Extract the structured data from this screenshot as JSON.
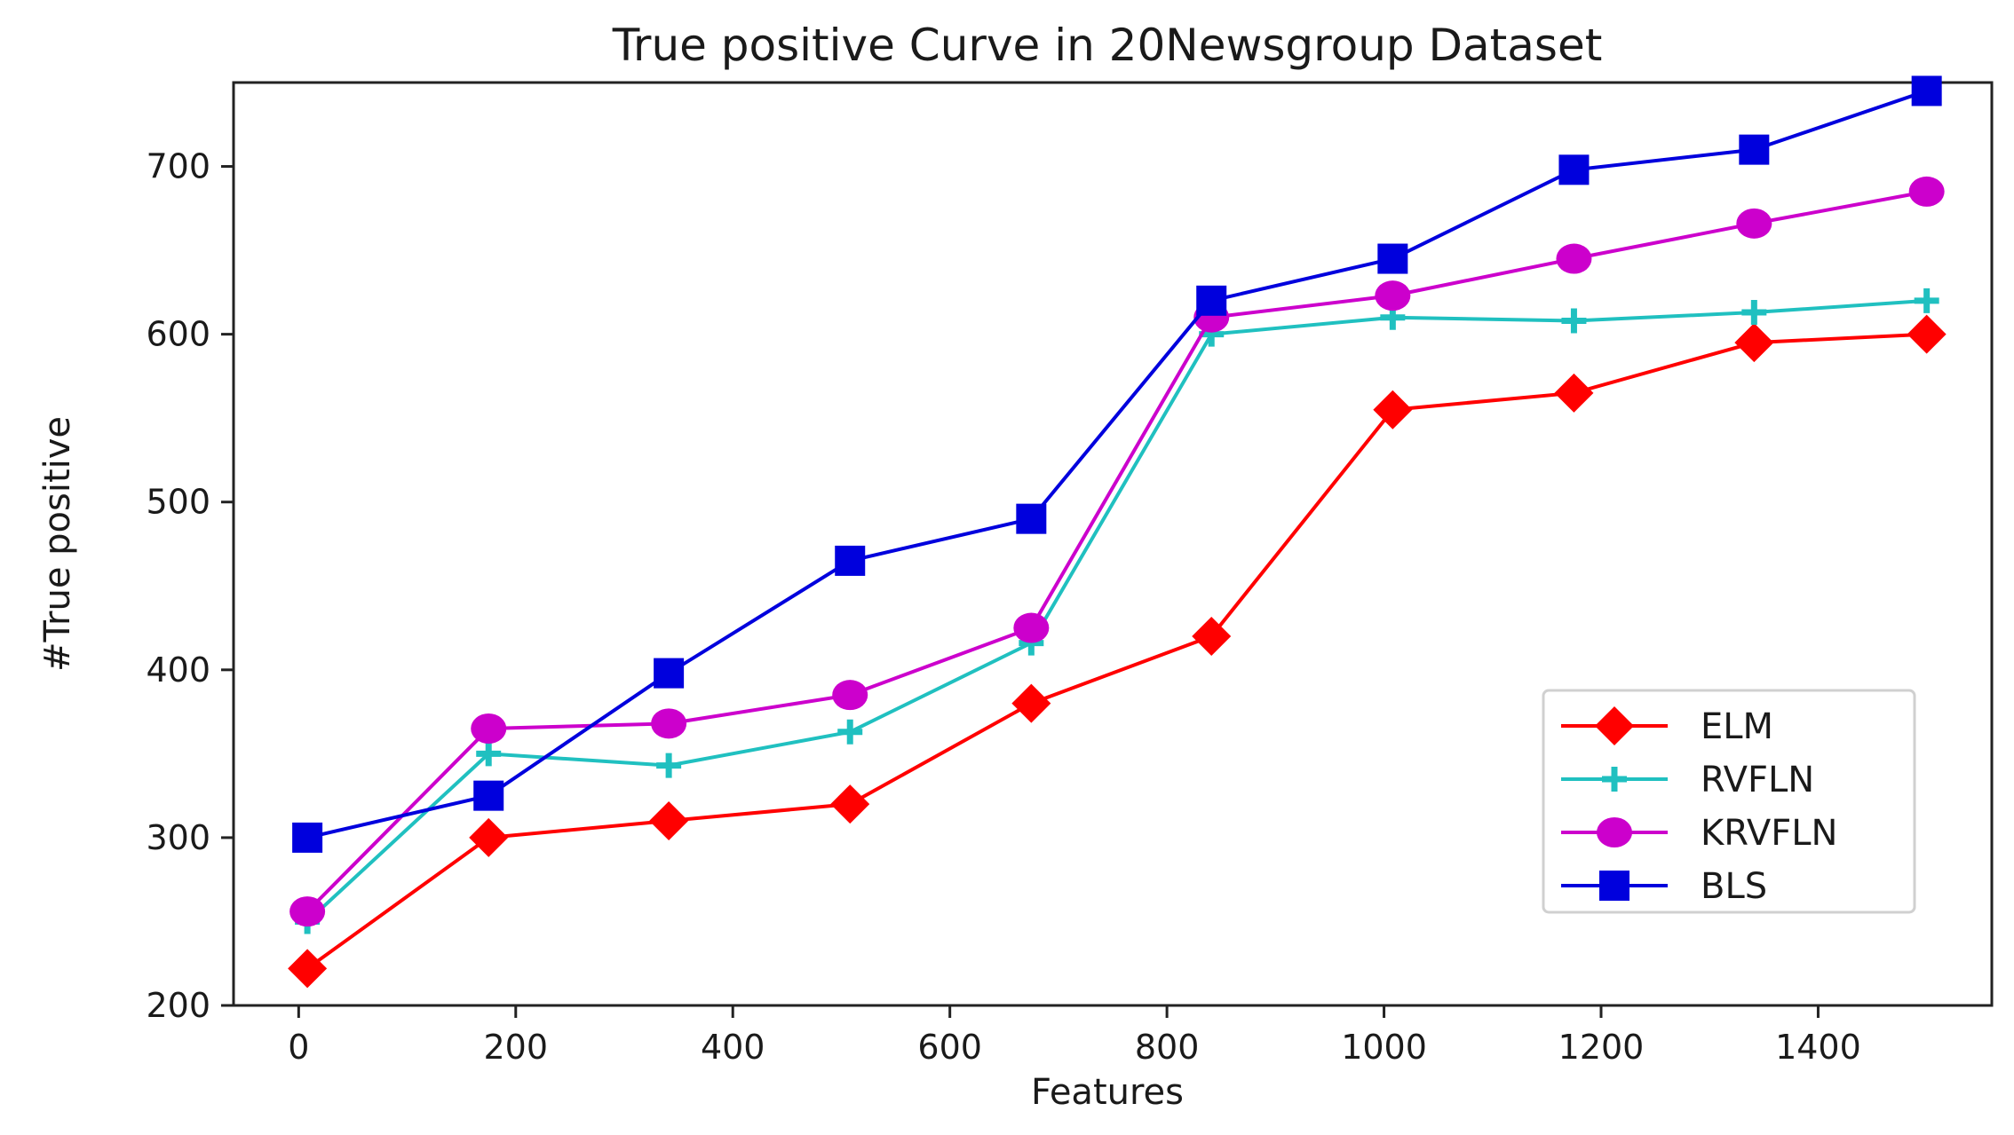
{
  "chart_data": {
    "type": "line",
    "title": "True positive Curve in 20Newsgroup Dataset",
    "xlabel": "Features",
    "ylabel": "#True positive",
    "xlim": [
      -60,
      1560
    ],
    "ylim": [
      200,
      750
    ],
    "xticks": [
      0,
      200,
      400,
      600,
      800,
      1000,
      1200,
      1400
    ],
    "yticks": [
      200,
      300,
      400,
      500,
      600,
      700
    ],
    "grid": false,
    "legend_position": "lower-right",
    "x": [
      8,
      175,
      341,
      508,
      675,
      841,
      1008,
      1175,
      1341,
      1500
    ],
    "series": [
      {
        "name": "ELM",
        "color": "#ff0000",
        "marker": "diamond",
        "values": [
          222,
          300,
          310,
          320,
          380,
          420,
          555,
          565,
          595,
          600
        ]
      },
      {
        "name": "RVFLN",
        "color": "#20c0c0",
        "marker": "plus",
        "values": [
          250,
          350,
          343,
          363,
          416,
          600,
          610,
          608,
          613,
          620
        ]
      },
      {
        "name": "KRVFLN",
        "color": "#cc00cc",
        "marker": "circle",
        "values": [
          256,
          365,
          368,
          385,
          425,
          610,
          623,
          645,
          666,
          685
        ]
      },
      {
        "name": "BLS",
        "color": "#0000dd",
        "marker": "square",
        "values": [
          300,
          325,
          398,
          465,
          490,
          620,
          645,
          698,
          710,
          745
        ]
      }
    ]
  }
}
